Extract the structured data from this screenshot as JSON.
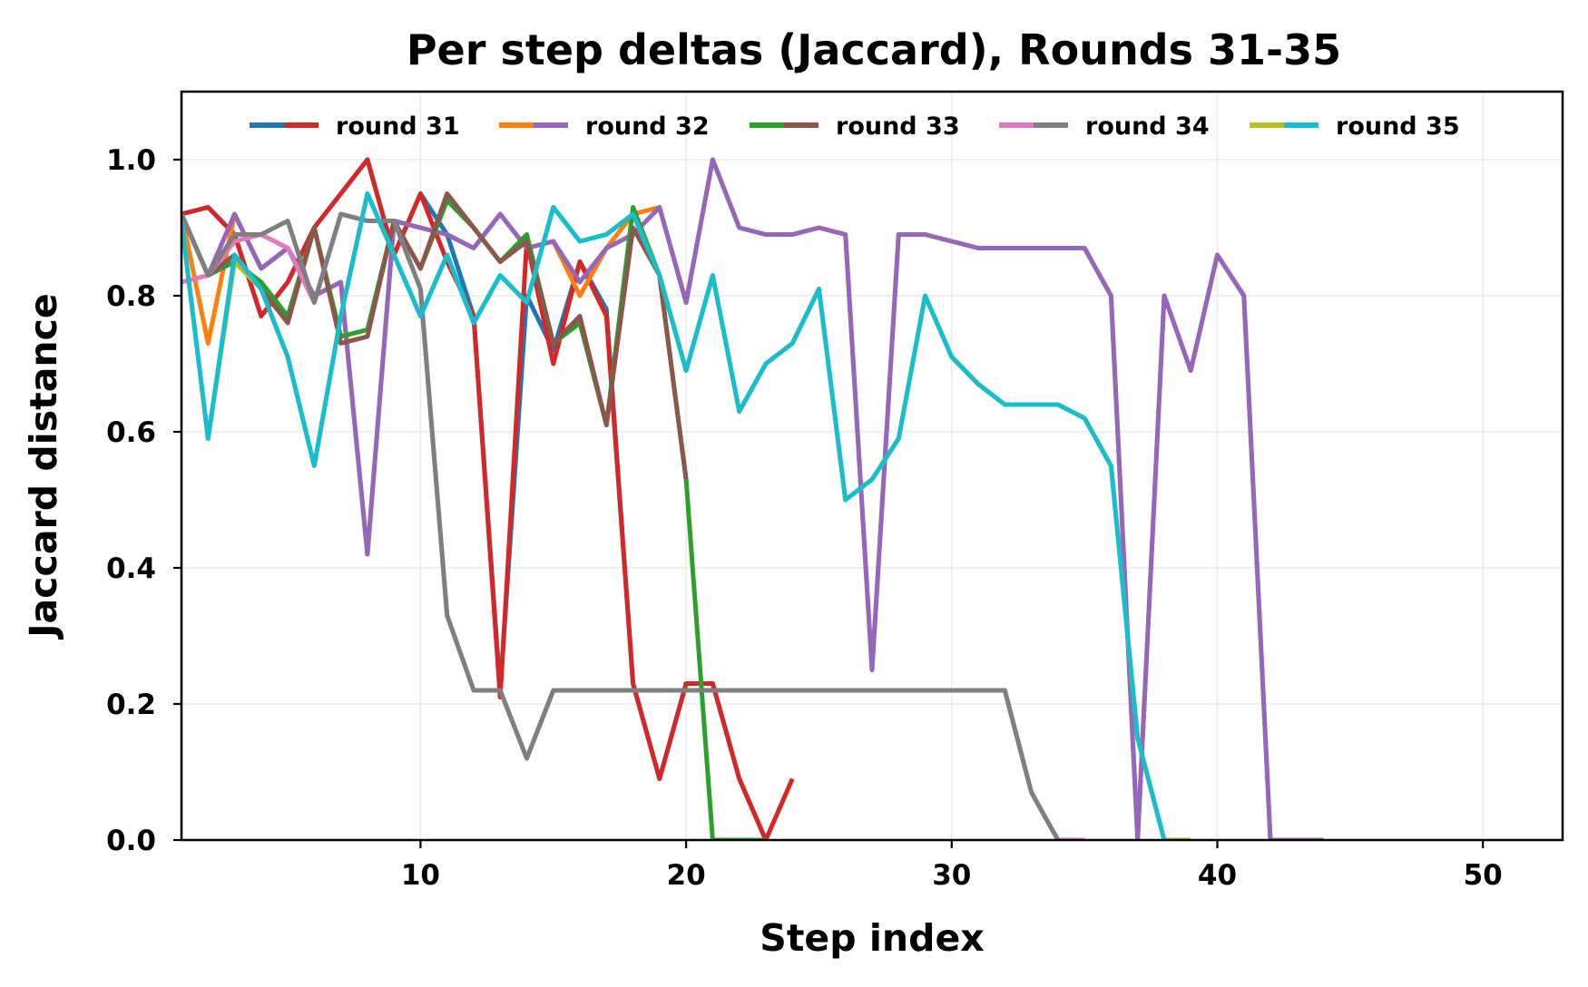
{
  "chart_data": {
    "type": "line",
    "title": "Per step deltas (Jaccard), Rounds 31-35",
    "xlabel": "Step index",
    "ylabel": "Jaccard distance",
    "xlim": [
      1,
      53
    ],
    "ylim": [
      0,
      1.1
    ],
    "xticks": [
      10,
      20,
      30,
      40,
      50
    ],
    "yticks": [
      0.0,
      0.2,
      0.4,
      0.6,
      0.8,
      1.0
    ],
    "xtick_labels": [
      "10",
      "20",
      "30",
      "40",
      "50"
    ],
    "ytick_labels": [
      "0.0",
      "0.2",
      "0.4",
      "0.6",
      "0.8",
      "1.0"
    ],
    "grid": true,
    "legend_position": "top-center",
    "legend": [
      {
        "label": "round 31",
        "colors": [
          "#1f77b4",
          "#d62728"
        ]
      },
      {
        "label": "round 32",
        "colors": [
          "#ff7f0e",
          "#9467bd"
        ]
      },
      {
        "label": "round 33",
        "colors": [
          "#2ca02c",
          "#8c564b"
        ]
      },
      {
        "label": "round 34",
        "colors": [
          "#e377c2",
          "#7f7f7f"
        ]
      },
      {
        "label": "round 35",
        "colors": [
          "#bcbd22",
          "#17becf"
        ]
      }
    ],
    "series": [
      {
        "color": "#1f77b4",
        "x": [
          1,
          2,
          3,
          4,
          5,
          6,
          7,
          8,
          9,
          10,
          11,
          12,
          13,
          14,
          15,
          16,
          17,
          18,
          19,
          20,
          21,
          22,
          23
        ],
        "y": [
          0.92,
          0.93,
          0.89,
          0.77,
          0.82,
          0.9,
          0.95,
          1.0,
          0.86,
          0.95,
          0.89,
          0.77,
          0.22,
          0.8,
          0.72,
          0.85,
          0.78,
          0.23,
          0.09,
          0.23,
          0.23,
          0.09,
          0.0
        ]
      },
      {
        "color": "#d62728",
        "x": [
          1,
          2,
          3,
          4,
          5,
          6,
          7,
          8,
          9,
          10,
          11,
          12,
          13,
          14,
          15,
          16,
          17,
          18,
          19,
          20,
          21,
          22,
          23,
          24
        ],
        "y": [
          0.92,
          0.93,
          0.89,
          0.77,
          0.82,
          0.9,
          0.95,
          1.0,
          0.86,
          0.95,
          0.85,
          0.77,
          0.21,
          0.88,
          0.7,
          0.85,
          0.77,
          0.23,
          0.09,
          0.23,
          0.23,
          0.09,
          0.0,
          0.09
        ]
      },
      {
        "color": "#ff7f0e",
        "x": [
          1,
          2,
          3,
          4,
          5,
          6,
          7,
          8,
          9,
          10,
          11,
          12,
          13,
          14,
          15,
          16,
          17,
          18,
          19,
          20,
          21,
          22,
          23,
          24,
          25,
          26,
          27,
          28,
          29,
          30,
          31,
          32,
          33,
          34,
          35,
          36,
          37,
          38,
          39,
          40,
          41,
          42,
          43
        ],
        "y": [
          0.92,
          0.73,
          0.92,
          0.84,
          0.87,
          0.8,
          0.82,
          0.42,
          0.91,
          0.9,
          0.89,
          0.87,
          0.92,
          0.87,
          0.88,
          0.8,
          0.87,
          0.92,
          0.93,
          0.79,
          1.0,
          0.9,
          0.89,
          0.89,
          0.9,
          0.89,
          0.25,
          0.89,
          0.89,
          0.88,
          0.87,
          0.87,
          0.87,
          0.87,
          0.87,
          0.8,
          0.0,
          0.8,
          0.69,
          0.86,
          0.8,
          0.0,
          0.0
        ]
      },
      {
        "color": "#9467bd",
        "x": [
          1,
          2,
          3,
          4,
          5,
          6,
          7,
          8,
          9,
          10,
          11,
          12,
          13,
          14,
          15,
          16,
          17,
          18,
          19,
          20,
          21,
          22,
          23,
          24,
          25,
          26,
          27,
          28,
          29,
          30,
          31,
          32,
          33,
          34,
          35,
          36,
          37,
          38,
          39,
          40,
          41,
          42,
          43,
          44
        ],
        "y": [
          0.92,
          0.83,
          0.92,
          0.84,
          0.87,
          0.8,
          0.82,
          0.42,
          0.91,
          0.9,
          0.89,
          0.87,
          0.92,
          0.87,
          0.88,
          0.82,
          0.87,
          0.89,
          0.93,
          0.79,
          1.0,
          0.9,
          0.89,
          0.89,
          0.9,
          0.89,
          0.25,
          0.89,
          0.89,
          0.88,
          0.87,
          0.87,
          0.87,
          0.87,
          0.87,
          0.8,
          0.0,
          0.8,
          0.69,
          0.86,
          0.8,
          0.0,
          0.0,
          0.0
        ]
      },
      {
        "color": "#2ca02c",
        "x": [
          1,
          2,
          3,
          4,
          5,
          6,
          7,
          8,
          9,
          10,
          11,
          12,
          13,
          14,
          15,
          16,
          17,
          18,
          19,
          20,
          21,
          22,
          23
        ],
        "y": [
          0.92,
          0.83,
          0.85,
          0.82,
          0.77,
          0.9,
          0.74,
          0.75,
          0.91,
          0.84,
          0.94,
          0.9,
          0.85,
          0.89,
          0.73,
          0.76,
          0.61,
          0.93,
          0.83,
          0.53,
          0.0,
          0.0,
          0.0
        ]
      },
      {
        "color": "#8c564b",
        "x": [
          1,
          2,
          3,
          4,
          5,
          6,
          7,
          8,
          9,
          10,
          11,
          12,
          13,
          14,
          15,
          16,
          17,
          18,
          19,
          20
        ],
        "y": [
          0.92,
          0.83,
          0.86,
          0.81,
          0.76,
          0.9,
          0.73,
          0.74,
          0.91,
          0.84,
          0.95,
          0.9,
          0.85,
          0.88,
          0.73,
          0.77,
          0.61,
          0.9,
          0.83,
          0.53
        ]
      },
      {
        "color": "#e377c2",
        "x": [
          1,
          2,
          3,
          4,
          5,
          6,
          7,
          8,
          9,
          10,
          11,
          12,
          13,
          14,
          15,
          16,
          17,
          18,
          19,
          20,
          21,
          22,
          23,
          24,
          25,
          26,
          27,
          28,
          29,
          30,
          31,
          32,
          33,
          34,
          35
        ],
        "y": [
          0.82,
          0.83,
          0.88,
          0.89,
          0.87,
          0.79,
          0.92,
          0.91,
          0.91,
          0.81,
          0.33,
          0.22,
          0.22,
          0.12,
          0.22,
          0.22,
          0.22,
          0.22,
          0.22,
          0.22,
          0.22,
          0.22,
          0.22,
          0.22,
          0.22,
          0.22,
          0.22,
          0.22,
          0.22,
          0.22,
          0.22,
          0.22,
          0.07,
          0.0,
          0.0
        ]
      },
      {
        "color": "#7f7f7f",
        "x": [
          1,
          2,
          3,
          4,
          5,
          6,
          7,
          8,
          9,
          10,
          11,
          12,
          13,
          14,
          15,
          16,
          17,
          18,
          19,
          20,
          21,
          22,
          23,
          24,
          25,
          26,
          27,
          28,
          29,
          30,
          31,
          32,
          33,
          34
        ],
        "y": [
          0.92,
          0.83,
          0.89,
          0.89,
          0.91,
          0.79,
          0.92,
          0.91,
          0.91,
          0.81,
          0.33,
          0.22,
          0.22,
          0.12,
          0.22,
          0.22,
          0.22,
          0.22,
          0.22,
          0.22,
          0.22,
          0.22,
          0.22,
          0.22,
          0.22,
          0.22,
          0.22,
          0.22,
          0.22,
          0.22,
          0.22,
          0.22,
          0.07,
          0.0
        ]
      },
      {
        "color": "#bcbd22",
        "x": [
          1,
          2,
          3,
          4,
          5,
          6,
          7,
          8,
          9,
          10,
          11,
          12,
          13,
          14,
          15,
          16,
          17,
          18,
          19,
          20,
          21,
          22,
          23,
          24,
          25,
          26,
          27,
          28,
          29,
          30,
          31,
          32,
          33,
          34,
          35,
          36,
          37,
          38,
          39
        ],
        "y": [
          0.91,
          0.59,
          0.85,
          0.81,
          0.71,
          0.55,
          0.77,
          0.95,
          0.86,
          0.77,
          0.86,
          0.76,
          0.83,
          0.79,
          0.93,
          0.88,
          0.89,
          0.92,
          0.83,
          0.69,
          0.83,
          0.63,
          0.7,
          0.73,
          0.81,
          0.5,
          0.53,
          0.59,
          0.8,
          0.71,
          0.67,
          0.64,
          0.64,
          0.64,
          0.62,
          0.55,
          0.15,
          0.0,
          0.0
        ]
      },
      {
        "color": "#17becf",
        "x": [
          1,
          2,
          3,
          4,
          5,
          6,
          7,
          8,
          9,
          10,
          11,
          12,
          13,
          14,
          15,
          16,
          17,
          18,
          19,
          20,
          21,
          22,
          23,
          24,
          25,
          26,
          27,
          28,
          29,
          30,
          31,
          32,
          33,
          34,
          35,
          36,
          37,
          38
        ],
        "y": [
          0.91,
          0.59,
          0.86,
          0.81,
          0.71,
          0.55,
          0.77,
          0.95,
          0.86,
          0.77,
          0.86,
          0.76,
          0.83,
          0.79,
          0.93,
          0.88,
          0.89,
          0.92,
          0.83,
          0.69,
          0.83,
          0.63,
          0.7,
          0.73,
          0.81,
          0.5,
          0.53,
          0.59,
          0.8,
          0.71,
          0.67,
          0.64,
          0.64,
          0.64,
          0.62,
          0.55,
          0.15,
          0.0
        ]
      }
    ]
  }
}
